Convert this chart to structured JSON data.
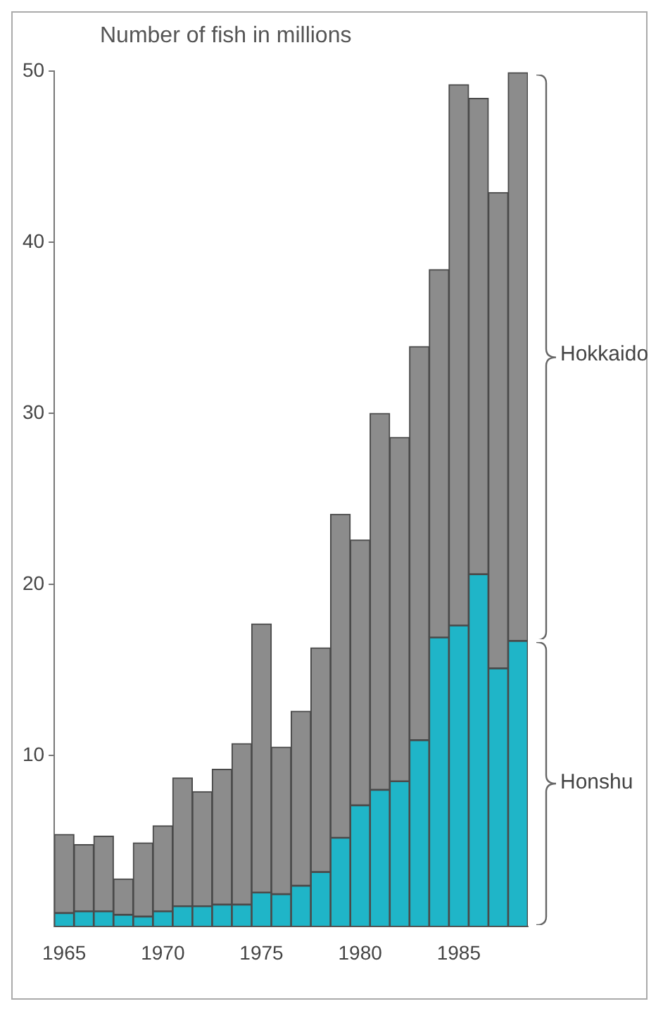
{
  "chart_data": {
    "type": "bar",
    "ylabel": "Number of fish in millions",
    "categories": [
      "1965",
      null,
      null,
      null,
      null,
      "1970",
      null,
      null,
      null,
      null,
      "1975",
      null,
      null,
      null,
      null,
      "1980",
      null,
      null,
      null,
      null,
      "1985",
      null,
      null,
      null
    ],
    "series": [
      {
        "name": "Honshu",
        "color": "#1fb5c8",
        "values": [
          0.8,
          0.9,
          0.9,
          0.7,
          0.6,
          0.9,
          1.2,
          1.2,
          1.3,
          1.3,
          2.0,
          1.9,
          2.4,
          3.2,
          5.2,
          7.1,
          8.0,
          8.5,
          10.9,
          16.9,
          17.6,
          20.6,
          15.1,
          16.7
        ]
      },
      {
        "name": "Hokkaido",
        "color": "#8c8c8c",
        "values": [
          4.6,
          3.9,
          4.4,
          2.1,
          4.3,
          5.0,
          7.5,
          6.7,
          7.9,
          9.4,
          15.7,
          8.6,
          10.2,
          13.1,
          18.9,
          15.5,
          22.0,
          20.1,
          23.0,
          21.5,
          31.6,
          27.8,
          27.8,
          33.2
        ]
      }
    ],
    "stacked": true,
    "ylim": [
      0,
      50
    ],
    "yticks": [
      10,
      20,
      30,
      40,
      50
    ],
    "grid": false,
    "legend": false
  }
}
